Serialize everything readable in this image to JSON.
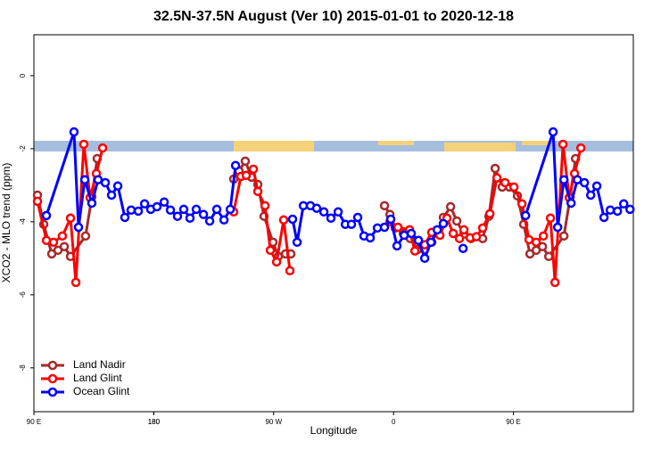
{
  "chart_data": {
    "type": "line",
    "title": "32.5N-37.5N August (Ver 10)   2015-01-01 to 2020-12-18",
    "x_label": "Longitude",
    "y_label": "XCO2 - MLO trend (ppm)",
    "xlim": [
      90,
      540
    ],
    "xticks": [
      {
        "value": 90,
        "label": "90 E"
      },
      180,
      {
        "value": 270,
        "label": "90 W"
      },
      {
        "value": 360,
        "label": "0"
      },
      {
        "value": 450,
        "label": "90 E"
      },
      180.0001
    ],
    "ylim": [
      -9.2,
      1.12
    ],
    "yticks": [
      0,
      -2,
      -4,
      -6,
      -8
    ],
    "legend": "bottom-left",
    "series": [
      {
        "name": "Land Nadir",
        "color": "#a52a2a",
        "x": [
          92.7,
          97.4,
          103.4,
          108.1,
          112.8,
          117.5,
          128.8,
          133.5,
          137.5,
          null,
          240.0,
          244.0,
          248.7,
          253.4,
          258.1,
          262.8,
          269.5,
          273.5,
          278.9,
          282.9,
          null,
          353.2,
          357.3,
          361.3,
          367.3,
          372.6,
          378.0,
          383.4,
          388.7,
          393.4,
          397.4,
          402.8,
          407.5,
          412.8,
          418.2,
          426.9,
          431.6,
          436.3,
          441.6,
          447.0,
          453.0,
          457.7,
          462.4,
          467.1,
          471.8,
          476.5,
          487.9,
          492.6,
          496.6
        ],
        "values": [
          -3.27,
          -4.07,
          -4.88,
          -4.78,
          -4.68,
          -4.95,
          -4.39,
          -3.32,
          -2.27,
          null,
          -2.83,
          -2.61,
          -2.34,
          -2.78,
          -2.98,
          -3.85,
          -4.56,
          -4.95,
          -4.88,
          -4.88,
          null,
          -3.56,
          -3.8,
          -4.17,
          -4.32,
          -4.46,
          -4.76,
          -4.76,
          -4.56,
          -4.24,
          -3.88,
          -3.59,
          -3.98,
          -4.34,
          -4.46,
          -4.46,
          -3.85,
          -2.54,
          -3.05,
          -3.05,
          -3.29,
          -4.07,
          -4.88,
          -4.78,
          -4.68,
          -4.95,
          -4.39,
          -3.32,
          -2.27
        ]
      },
      {
        "name": "Land Glint",
        "color": "#ff0000",
        "x": [
          92.7,
          99.4,
          104.7,
          111.4,
          117.5,
          121.5,
          127.5,
          132.2,
          136.9,
          141.6,
          null,
          240.0,
          245.4,
          249.4,
          254.8,
          258.1,
          263.5,
          267.5,
          272.2,
          277.5,
          282.2,
          null,
          357.3,
          363.3,
          372.0,
          376.0,
          383.4,
          388.7,
          394.8,
          400.1,
          404.8,
          409.5,
          412.8,
          417.5,
          422.2,
          426.9,
          432.3,
          437.6,
          443.7,
          450.4,
          456.4,
          461.7,
          467.1,
          472.5,
          477.8,
          481.2,
          487.2,
          491.9,
          495.9,
          500.6
        ],
        "values": [
          -3.44,
          -4.51,
          -4.56,
          -4.39,
          -3.9,
          -5.66,
          -1.88,
          -3.34,
          -2.68,
          -1.98,
          null,
          -3.73,
          -2.76,
          -2.73,
          -2.56,
          -3.17,
          -3.56,
          -4.78,
          -5.1,
          -3.95,
          -5.34,
          null,
          -4.0,
          -4.15,
          -4.22,
          -4.8,
          -4.63,
          -4.29,
          -4.37,
          -3.9,
          -4.32,
          -4.46,
          -4.22,
          -4.44,
          -4.41,
          -4.17,
          -3.78,
          -2.8,
          -2.93,
          -3.05,
          -3.51,
          -4.49,
          -4.56,
          -4.39,
          -3.9,
          -5.66,
          -1.88,
          -3.34,
          -2.68,
          -1.98
        ]
      },
      {
        "name": "Ocean Glint",
        "color": "#0000ff",
        "x": [
          99.4,
          120.1,
          123.5,
          128.2,
          133.5,
          138.2,
          143.6,
          148.3,
          153.0,
          158.3,
          163.0,
          168.4,
          173.1,
          177.7,
          182.4,
          187.8,
          192.5,
          197.8,
          202.5,
          207.2,
          211.9,
          217.3,
          222.0,
          227.3,
          232.7,
          237.4,
          241.4,
          null,
          284.2,
          287.6,
          292.3,
          297.6,
          302.3,
          307.7,
          313.0,
          318.4,
          323.8,
          328.4,
          333.1,
          337.8,
          342.5,
          347.9,
          353.2,
          357.9,
          362.6,
          368.0,
          373.3,
          378.7,
          383.4,
          388.1,
          392.8,
          397.4,
          null,
          412.2,
          null,
          459.1,
          479.8,
          483.2,
          487.9,
          493.3,
          498.0,
          503.3,
          508.0,
          512.6,
          518.0,
          522.7,
          528.1,
          532.8,
          537.5
        ],
        "values": [
          -3.83,
          -1.54,
          -4.15,
          -2.85,
          -3.49,
          -2.85,
          -2.93,
          -3.27,
          -3.02,
          -3.88,
          -3.68,
          -3.71,
          -3.51,
          -3.66,
          -3.59,
          -3.46,
          -3.68,
          -3.85,
          -3.66,
          -3.9,
          -3.66,
          -3.8,
          -3.98,
          -3.66,
          -3.95,
          -3.66,
          -2.46,
          null,
          -3.93,
          -4.56,
          -3.56,
          -3.56,
          -3.63,
          -3.73,
          -3.9,
          -3.73,
          -4.07,
          -4.07,
          -3.88,
          -4.39,
          -4.44,
          -4.17,
          -4.15,
          -3.93,
          -4.66,
          -4.37,
          -4.32,
          -4.51,
          -5.0,
          -4.56,
          -4.22,
          -4.05,
          null,
          -4.73,
          null,
          -3.83,
          -1.54,
          -4.15,
          -2.85,
          -3.49,
          -2.85,
          -2.93,
          -3.27,
          -3.02,
          -3.88,
          -3.68,
          -3.71,
          -3.51,
          -3.66
        ]
      }
    ]
  }
}
